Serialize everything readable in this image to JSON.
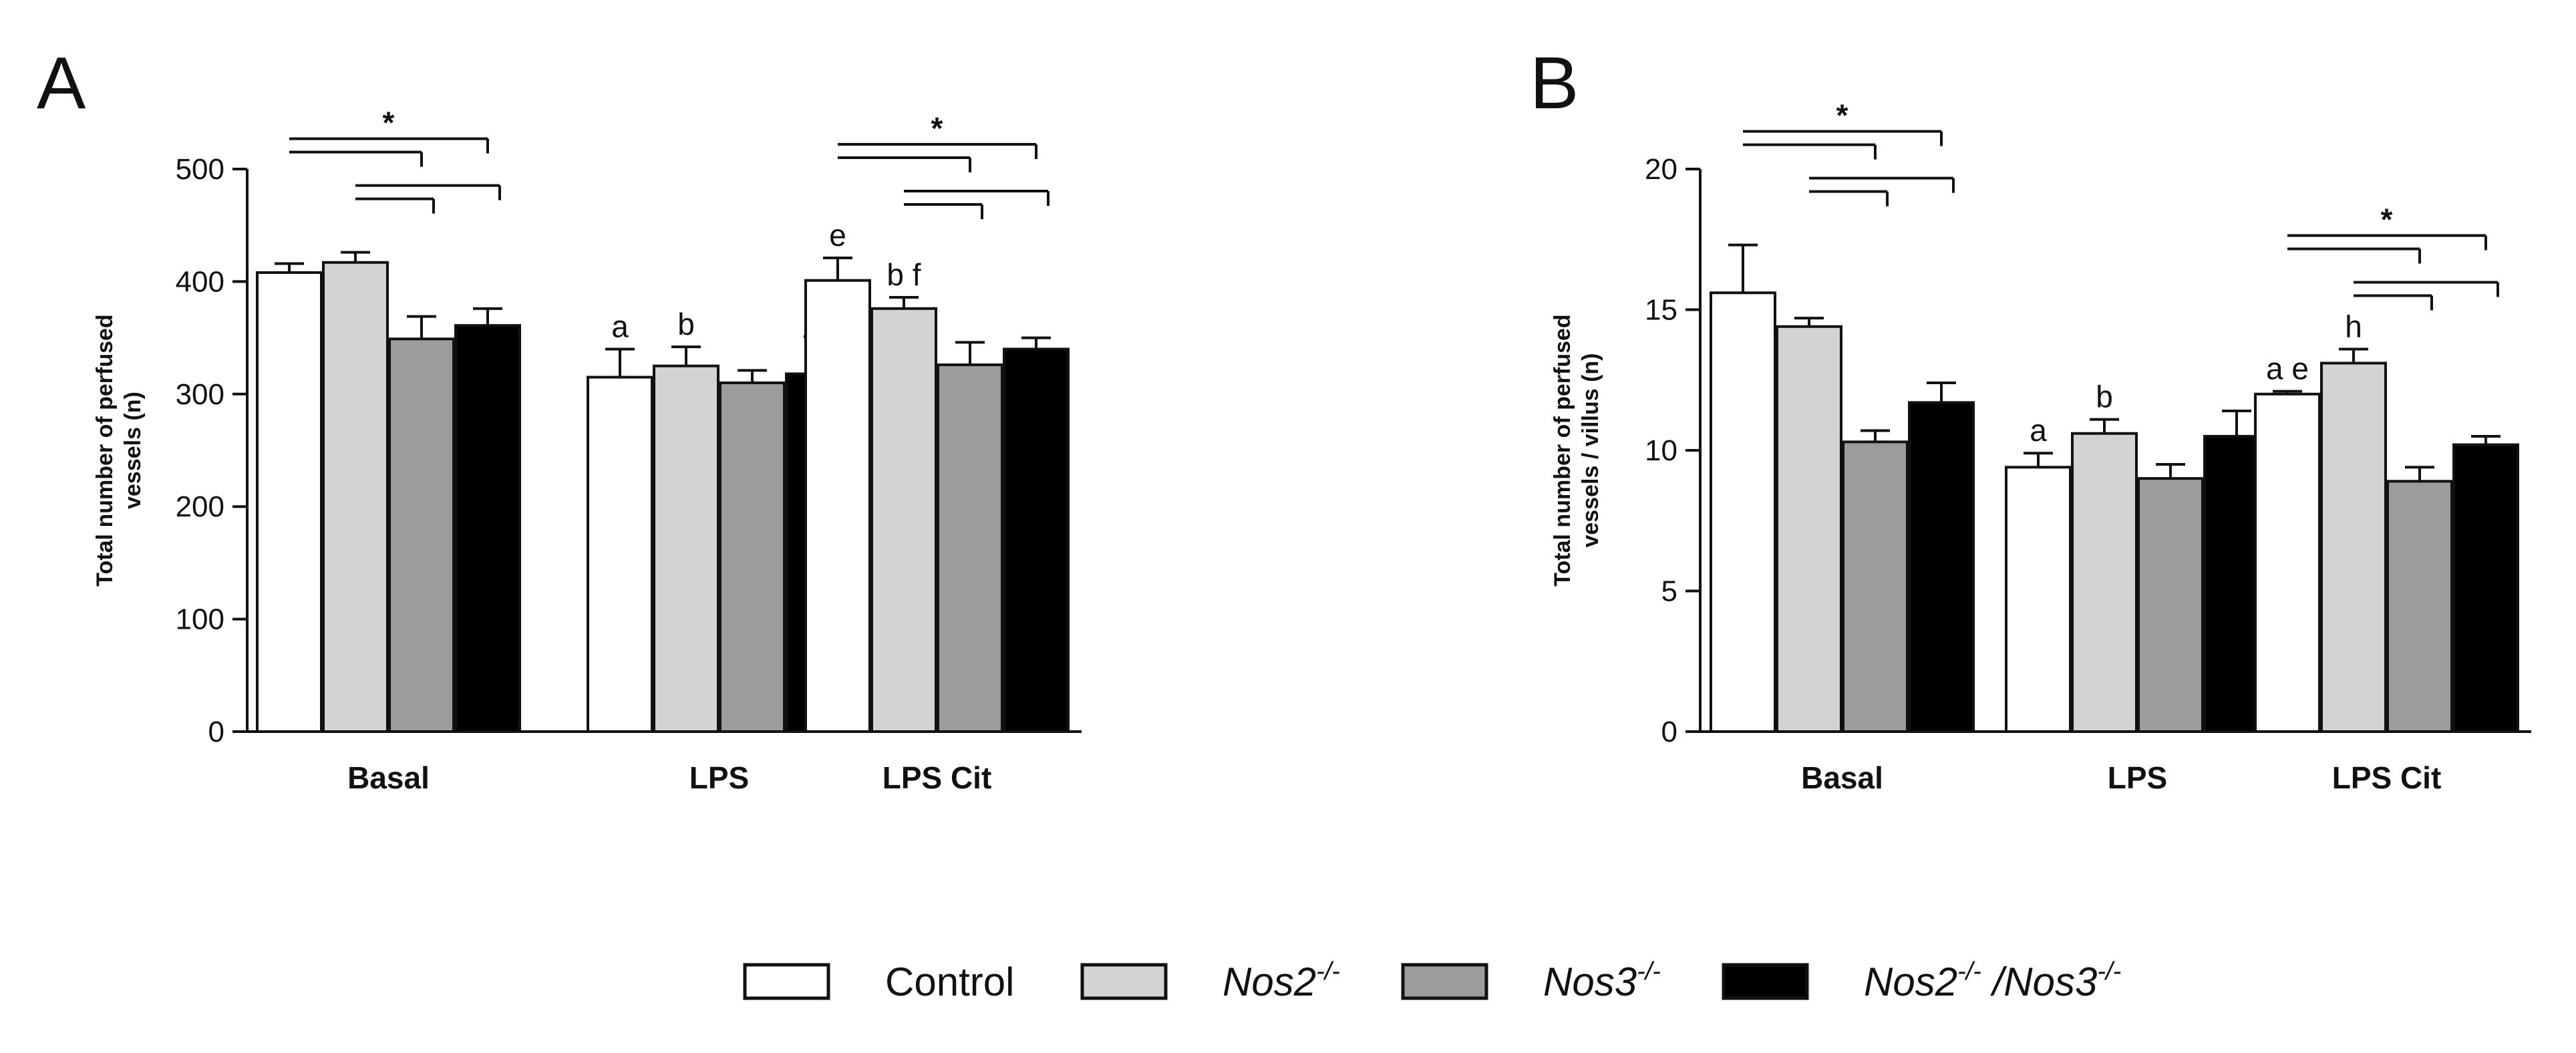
{
  "legend": [
    {
      "name": "Control",
      "base": "Control",
      "sup": "",
      "base2": "",
      "sup2": "",
      "fill": "#ffffff",
      "italic": false
    },
    {
      "name": "Nos2-/-",
      "base": "Nos2",
      "sup": "-/-",
      "base2": "",
      "sup2": "",
      "fill": "#d3d3d3",
      "italic": true
    },
    {
      "name": "Nos3-/-",
      "base": "Nos3",
      "sup": "-/-",
      "base2": "",
      "sup2": "",
      "fill": "#9c9c9e",
      "italic": true
    },
    {
      "name": "Nos2-/-/Nos3-/-",
      "base": "Nos2",
      "sup": "-/-",
      "base2": " /Nos3",
      "sup2": "-/-",
      "fill": "#000000",
      "italic": true
    }
  ],
  "chart_data": [
    {
      "panel": "A",
      "type": "bar",
      "ylabel_lines": [
        "Total number of perfused",
        "vessels (n)"
      ],
      "categories": [
        "Basal",
        "LPS",
        "LPS Cit"
      ],
      "ylim": [
        0,
        500
      ],
      "yticks": [
        0,
        100,
        200,
        300,
        400,
        500
      ],
      "series": [
        {
          "name": "Control",
          "values": [
            408,
            315,
            401
          ],
          "errors": [
            8,
            25,
            20
          ]
        },
        {
          "name": "Nos2-/-",
          "values": [
            417,
            325,
            376
          ],
          "errors": [
            9,
            17,
            10
          ]
        },
        {
          "name": "Nos3-/-",
          "values": [
            349,
            310,
            326
          ],
          "errors": [
            20,
            11,
            20
          ]
        },
        {
          "name": "Nos2-/-/Nos3-/-",
          "values": [
            361,
            318,
            340
          ],
          "errors": [
            15,
            33,
            10
          ]
        }
      ],
      "letters": [
        {
          "category": 1,
          "series": 0,
          "text": "a"
        },
        {
          "category": 1,
          "series": 1,
          "text": "b"
        },
        {
          "category": 2,
          "series": 0,
          "text": "e"
        },
        {
          "category": 2,
          "series": 1,
          "text": "b f"
        }
      ],
      "significance": [
        {
          "category": 0,
          "label": "*"
        },
        {
          "category": 2,
          "label": "*"
        }
      ]
    },
    {
      "panel": "B",
      "type": "bar",
      "ylabel_lines": [
        "Total number of perfused",
        "vessels / villus (n)"
      ],
      "categories": [
        "Basal",
        "LPS",
        "LPS Cit"
      ],
      "ylim": [
        0,
        20
      ],
      "yticks": [
        0,
        5,
        10,
        15,
        20
      ],
      "series": [
        {
          "name": "Control",
          "values": [
            15.6,
            9.4,
            12.0
          ],
          "errors": [
            1.7,
            0.5,
            0.1
          ]
        },
        {
          "name": "Nos2-/-",
          "values": [
            14.4,
            10.6,
            13.1
          ],
          "errors": [
            0.3,
            0.5,
            0.5
          ]
        },
        {
          "name": "Nos3-/-",
          "values": [
            10.3,
            9.0,
            8.9
          ],
          "errors": [
            0.4,
            0.5,
            0.5
          ]
        },
        {
          "name": "Nos2-/-/Nos3-/-",
          "values": [
            11.7,
            10.5,
            10.2
          ],
          "errors": [
            0.7,
            0.9,
            0.3
          ]
        }
      ],
      "letters": [
        {
          "category": 1,
          "series": 0,
          "text": "a"
        },
        {
          "category": 1,
          "series": 1,
          "text": "b"
        },
        {
          "category": 2,
          "series": 0,
          "text": "a e"
        },
        {
          "category": 2,
          "series": 1,
          "text": "h"
        }
      ],
      "significance": [
        {
          "category": 0,
          "label": "*"
        },
        {
          "category": 2,
          "label": "*"
        }
      ]
    }
  ]
}
